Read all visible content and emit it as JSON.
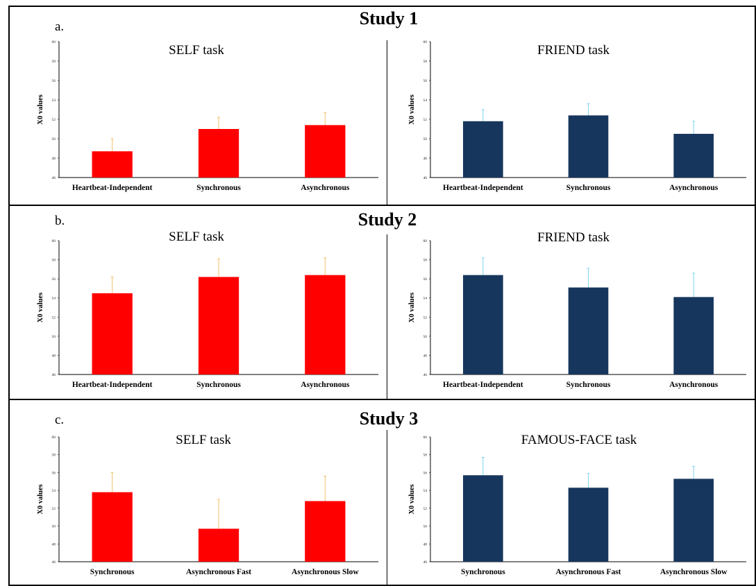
{
  "studies": [
    {
      "letter": "a.",
      "title": "Study 1"
    },
    {
      "letter": "b.",
      "title": "Study 2"
    },
    {
      "letter": "c.",
      "title": "Study 3"
    }
  ],
  "colors": {
    "self_bar": "#ff0000",
    "self_error": "#f3c06a",
    "other_bar": "#17365d",
    "other_error": "#7fd3ee"
  },
  "chart_data": [
    {
      "type": "bar",
      "title": "SELF task",
      "ylabel": "X0 values",
      "categories": [
        "Heartbeat-Independent",
        "Synchronous",
        "Asynchronous"
      ],
      "values": [
        48.7,
        51.0,
        51.4
      ],
      "errors": [
        1.3,
        1.2,
        1.3
      ],
      "ylim": [
        46,
        60
      ],
      "yticks": [
        46,
        48,
        50,
        52,
        54,
        56,
        58,
        60
      ],
      "color": "#ff0000",
      "error_color": "#f3c06a"
    },
    {
      "type": "bar",
      "title": "FRIEND task",
      "ylabel": "X0 values",
      "categories": [
        "Heartbeat-Independent",
        "Synchronous",
        "Asynchronous"
      ],
      "values": [
        51.8,
        52.4,
        50.5
      ],
      "errors": [
        1.2,
        1.2,
        1.3
      ],
      "ylim": [
        46,
        60
      ],
      "yticks": [
        46,
        48,
        50,
        52,
        54,
        56,
        58,
        60
      ],
      "color": "#17365d",
      "error_color": "#7fd3ee"
    },
    {
      "type": "bar",
      "title": "SELF task",
      "ylabel": "X0 values",
      "categories": [
        "Heartbeat-Independent",
        "Synchronous",
        "Asynchronous"
      ],
      "values": [
        54.5,
        56.2,
        56.4
      ],
      "errors": [
        1.7,
        1.9,
        1.8
      ],
      "ylim": [
        46,
        60
      ],
      "yticks": [
        46,
        48,
        50,
        52,
        54,
        56,
        58,
        60
      ],
      "color": "#ff0000",
      "error_color": "#f3c06a"
    },
    {
      "type": "bar",
      "title": "FRIEND task",
      "ylabel": "X0 values",
      "categories": [
        "Heartbeat-Independent",
        "Synchronous",
        "Asynchronous"
      ],
      "values": [
        56.4,
        55.1,
        54.1
      ],
      "errors": [
        1.8,
        2.0,
        2.5
      ],
      "ylim": [
        46,
        60
      ],
      "yticks": [
        46,
        48,
        50,
        52,
        54,
        56,
        58,
        60
      ],
      "color": "#17365d",
      "error_color": "#7fd3ee"
    },
    {
      "type": "bar",
      "title": "SELF task",
      "ylabel": "X0 values",
      "categories": [
        "Synchronous",
        "Asynchronous Fast",
        "Asynchronous Slow"
      ],
      "values": [
        53.8,
        49.7,
        52.8
      ],
      "errors": [
        2.2,
        3.3,
        2.8
      ],
      "ylim": [
        46,
        60
      ],
      "yticks": [
        46,
        48,
        50,
        52,
        54,
        56,
        58,
        60
      ],
      "color": "#ff0000",
      "error_color": "#f3c06a"
    },
    {
      "type": "bar",
      "title": "FAMOUS-FACE task",
      "ylabel": "X0 values",
      "categories": [
        "Synchronous",
        "Asynchronous Fast",
        "Asynchronous Slow"
      ],
      "values": [
        55.7,
        54.3,
        55.3
      ],
      "errors": [
        2.0,
        1.6,
        1.4
      ],
      "ylim": [
        46,
        60
      ],
      "yticks": [
        46,
        48,
        50,
        52,
        54,
        56,
        58,
        60
      ],
      "color": "#17365d",
      "error_color": "#7fd3ee"
    }
  ]
}
